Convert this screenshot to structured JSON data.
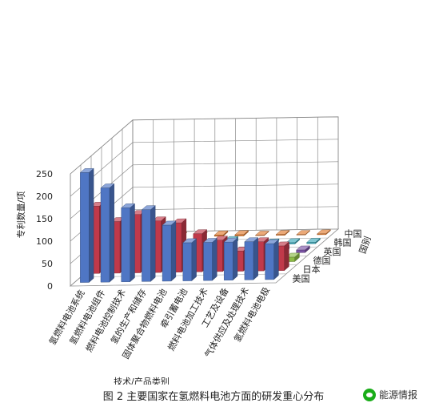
{
  "figure": {
    "caption": "图 2   主要国家在氢燃料电池方面的研发重心分布",
    "watermark": "能源情报"
  },
  "chart_data": {
    "type": "bar",
    "variant": "3d-column",
    "xlabel": "技术/产品类别",
    "ylabel": "专利数量/项",
    "zlabel": "国别",
    "ylim": [
      0,
      250
    ],
    "yticks": [
      0,
      50,
      100,
      150,
      200,
      250
    ],
    "grid": true,
    "categories": [
      "氢燃料电池系统",
      "氢燃料电池组件",
      "燃料电池控制技术",
      "氢的生产和储存",
      "固体聚合物燃料电池",
      "牵引蓄电池",
      "燃料电池加工技术",
      "工艺及设备",
      "气体供应及处理技术",
      "氢燃料电池电极"
    ],
    "series": [
      {
        "name": "美国",
        "color": "#4f76c4",
        "values": [
          245,
          210,
          165,
          160,
          125,
          85,
          85,
          85,
          85,
          80
        ]
      },
      {
        "name": "日本",
        "color": "#c0394a",
        "values": [
          150,
          115,
          130,
          115,
          110,
          85,
          70,
          45,
          65,
          55
        ]
      },
      {
        "name": "德国",
        "color": "#8cbb46",
        "values": [
          50,
          40,
          15,
          25,
          15,
          15,
          10,
          10,
          10,
          10
        ]
      },
      {
        "name": "英国",
        "color": "#7a52a4",
        "values": [
          10,
          8,
          5,
          6,
          8,
          5,
          6,
          7,
          8,
          6
        ]
      },
      {
        "name": "韩国",
        "color": "#3aa7b8",
        "values": [
          3,
          3,
          3,
          0,
          5,
          10,
          3,
          3,
          3,
          3
        ]
      },
      {
        "name": "中国",
        "color": "#e07b30",
        "values": [
          2,
          2,
          2,
          0,
          3,
          3,
          0,
          2,
          0,
          2
        ]
      }
    ]
  }
}
